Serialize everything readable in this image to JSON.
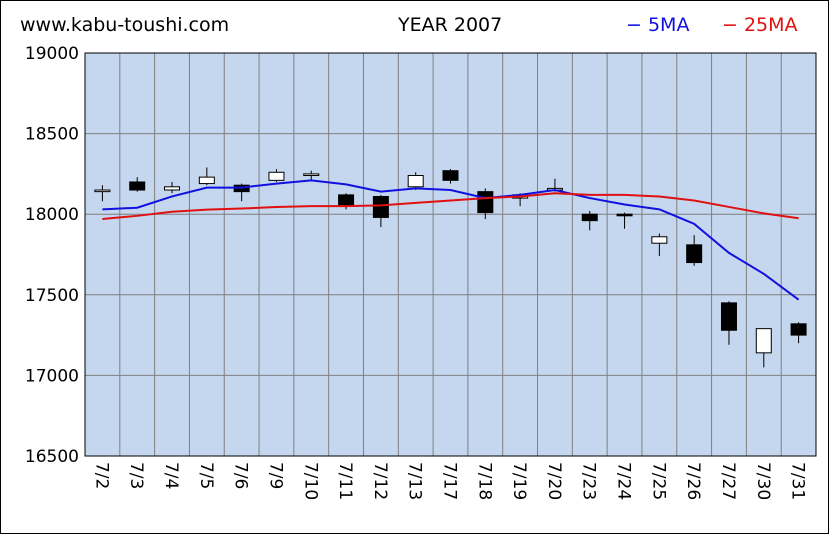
{
  "header": {
    "site": "www.kabu-toushi.com",
    "title": "YEAR 2007"
  },
  "colors": {
    "plot_background": "#c5d7ef",
    "grid": "#7f7f7f",
    "ma5": "#1010e0",
    "ma25": "#e01010",
    "candle_down": "#000000",
    "candle_up": "#ffffff"
  },
  "chart_data": {
    "type": "candlestick",
    "title": "YEAR 2007",
    "xlabel": "",
    "ylabel": "",
    "ylim": [
      16500,
      19000
    ],
    "yticks": [
      16500,
      17000,
      17500,
      18000,
      18500,
      19000
    ],
    "grid": true,
    "legend_position": "top-right",
    "categories": [
      "7/2",
      "7/3",
      "7/4",
      "7/5",
      "7/6",
      "7/9",
      "7/10",
      "7/11",
      "7/12",
      "7/13",
      "7/17",
      "7/18",
      "7/19",
      "7/20",
      "7/23",
      "7/24",
      "7/25",
      "7/26",
      "7/27",
      "7/30",
      "7/31"
    ],
    "ohlc": [
      {
        "o": 18140,
        "h": 18180,
        "l": 18080,
        "c": 18150
      },
      {
        "o": 18200,
        "h": 18230,
        "l": 18140,
        "c": 18150
      },
      {
        "o": 18150,
        "h": 18200,
        "l": 18130,
        "c": 18170
      },
      {
        "o": 18190,
        "h": 18290,
        "l": 18180,
        "c": 18230
      },
      {
        "o": 18180,
        "h": 18190,
        "l": 18080,
        "c": 18140
      },
      {
        "o": 18210,
        "h": 18280,
        "l": 18200,
        "c": 18260
      },
      {
        "o": 18240,
        "h": 18270,
        "l": 18210,
        "c": 18250
      },
      {
        "o": 18120,
        "h": 18130,
        "l": 18030,
        "c": 18050
      },
      {
        "o": 18110,
        "h": 18120,
        "l": 17920,
        "c": 17980
      },
      {
        "o": 18170,
        "h": 18260,
        "l": 18150,
        "c": 18240
      },
      {
        "o": 18270,
        "h": 18280,
        "l": 18190,
        "c": 18210
      },
      {
        "o": 18140,
        "h": 18160,
        "l": 17970,
        "c": 18010
      },
      {
        "o": 18100,
        "h": 18130,
        "l": 18050,
        "c": 18120
      },
      {
        "o": 18150,
        "h": 18220,
        "l": 18140,
        "c": 18160
      },
      {
        "o": 18000,
        "h": 18020,
        "l": 17900,
        "c": 17960
      },
      {
        "o": 18000,
        "h": 18010,
        "l": 17910,
        "c": 17990
      },
      {
        "o": 17820,
        "h": 17880,
        "l": 17740,
        "c": 17860
      },
      {
        "o": 17810,
        "h": 17870,
        "l": 17680,
        "c": 17700
      },
      {
        "o": 17450,
        "h": 17460,
        "l": 17190,
        "c": 17280
      },
      {
        "o": 17140,
        "h": 17290,
        "l": 17050,
        "c": 17290
      },
      {
        "o": 17320,
        "h": 17330,
        "l": 17200,
        "c": 17250
      }
    ],
    "series": [
      {
        "name": "5MA",
        "values": [
          18030,
          18040,
          18110,
          18165,
          18165,
          18190,
          18210,
          18185,
          18140,
          18160,
          18150,
          18100,
          18120,
          18150,
          18100,
          18060,
          18030,
          17940,
          17760,
          17630,
          17470
        ]
      },
      {
        "name": "25MA",
        "values": [
          17970,
          17990,
          18015,
          18028,
          18035,
          18045,
          18050,
          18050,
          18055,
          18070,
          18085,
          18100,
          18110,
          18130,
          18120,
          18120,
          18110,
          18085,
          18045,
          18005,
          17975
        ]
      }
    ]
  }
}
